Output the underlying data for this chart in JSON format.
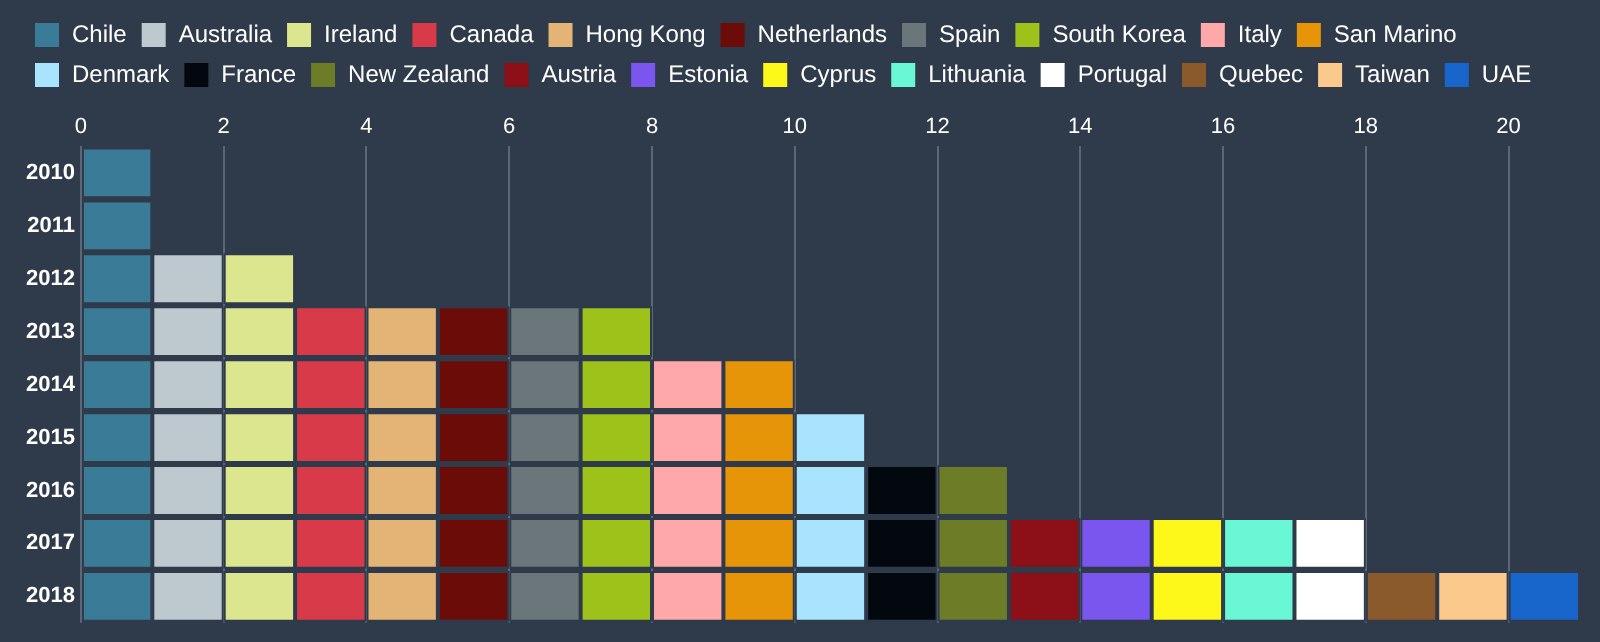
{
  "chart_data": {
    "type": "bar",
    "orientation": "horizontal",
    "stacked": true,
    "categories": [
      "2010",
      "2011",
      "2012",
      "2013",
      "2014",
      "2015",
      "2016",
      "2017",
      "2018"
    ],
    "xlim": [
      0,
      21
    ],
    "xticks": [
      0,
      2,
      4,
      6,
      8,
      10,
      12,
      14,
      16,
      18,
      20
    ],
    "grid": "x",
    "legend": "top left",
    "series": [
      {
        "name": "Chile",
        "color": "#3a7b98",
        "values": [
          1,
          1,
          1,
          1,
          1,
          1,
          1,
          1,
          1
        ]
      },
      {
        "name": "Australia",
        "color": "#bdc9ce",
        "values": [
          null,
          null,
          1,
          1,
          1,
          1,
          1,
          1,
          1
        ]
      },
      {
        "name": "Ireland",
        "color": "#dce68e",
        "values": [
          null,
          null,
          1,
          1,
          1,
          1,
          1,
          1,
          1
        ]
      },
      {
        "name": "Canada",
        "color": "#d93a4a",
        "values": [
          null,
          null,
          null,
          1,
          1,
          1,
          1,
          1,
          1
        ]
      },
      {
        "name": "Hong Kong",
        "color": "#e3b476",
        "values": [
          null,
          null,
          null,
          1,
          1,
          1,
          1,
          1,
          1
        ]
      },
      {
        "name": "Netherlands",
        "color": "#6b0c08",
        "values": [
          null,
          null,
          null,
          1,
          1,
          1,
          1,
          1,
          1
        ]
      },
      {
        "name": "Spain",
        "color": "#6a7679",
        "values": [
          null,
          null,
          null,
          1,
          1,
          1,
          1,
          1,
          1
        ]
      },
      {
        "name": "South Korea",
        "color": "#9dc21a",
        "values": [
          null,
          null,
          null,
          1,
          1,
          1,
          1,
          1,
          1
        ]
      },
      {
        "name": "Italy",
        "color": "#fea8a9",
        "values": [
          null,
          null,
          null,
          null,
          1,
          1,
          1,
          1,
          1
        ]
      },
      {
        "name": "San Marino",
        "color": "#e59507",
        "values": [
          null,
          null,
          null,
          null,
          1,
          1,
          1,
          1,
          1
        ]
      },
      {
        "name": "Denmark",
        "color": "#a8e4fd",
        "values": [
          null,
          null,
          null,
          null,
          null,
          1,
          1,
          1,
          1
        ]
      },
      {
        "name": "France",
        "color": "#03080e",
        "values": [
          null,
          null,
          null,
          null,
          null,
          null,
          1,
          1,
          1
        ]
      },
      {
        "name": "New Zealand",
        "color": "#6d7c27",
        "values": [
          null,
          null,
          null,
          null,
          null,
          null,
          1,
          1,
          1
        ]
      },
      {
        "name": "Austria",
        "color": "#8d1018",
        "values": [
          null,
          null,
          null,
          null,
          null,
          null,
          null,
          1,
          1
        ]
      },
      {
        "name": "Estonia",
        "color": "#7a55ee",
        "values": [
          null,
          null,
          null,
          null,
          null,
          null,
          null,
          1,
          1
        ]
      },
      {
        "name": "Cyprus",
        "color": "#fdf71a",
        "values": [
          null,
          null,
          null,
          null,
          null,
          null,
          null,
          1,
          1
        ]
      },
      {
        "name": "Lithuania",
        "color": "#6af7d6",
        "values": [
          null,
          null,
          null,
          null,
          null,
          null,
          null,
          1,
          1
        ]
      },
      {
        "name": "Portugal",
        "color": "#ffffff",
        "values": [
          null,
          null,
          null,
          null,
          null,
          null,
          null,
          1,
          1
        ]
      },
      {
        "name": "Quebec",
        "color": "#8a5a2b",
        "values": [
          null,
          null,
          null,
          null,
          null,
          null,
          null,
          null,
          1
        ]
      },
      {
        "name": "Taiwan",
        "color": "#fcc98d",
        "values": [
          null,
          null,
          null,
          null,
          null,
          null,
          null,
          null,
          1
        ]
      },
      {
        "name": "UAE",
        "color": "#1866cc",
        "values": [
          null,
          null,
          null,
          null,
          null,
          null,
          null,
          null,
          1
        ]
      }
    ]
  }
}
